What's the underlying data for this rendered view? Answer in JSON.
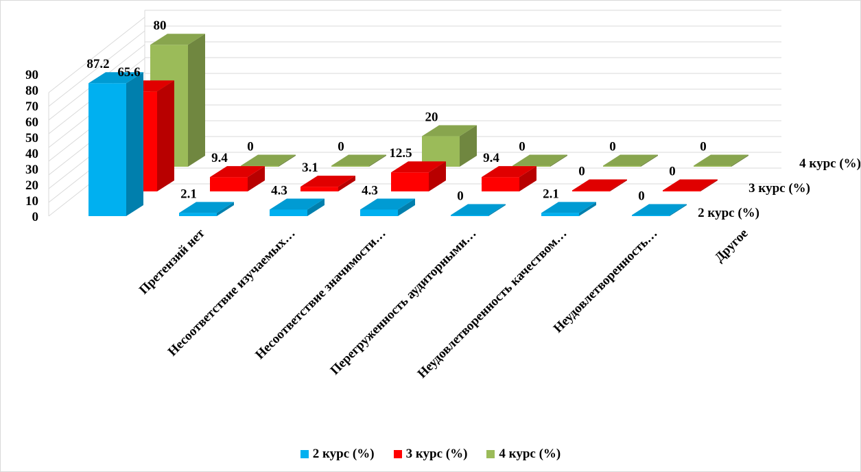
{
  "chart_data": {
    "type": "bar",
    "subtype": "3d-clustered",
    "categories": [
      "Претензий нет",
      "Несоответствие изучаемых…",
      "Несоответствие значимости…",
      "Перегруженность аудиторными…",
      "Неудовлетворенность качеством…",
      "Неудовлетворенность…",
      "Другое"
    ],
    "series": [
      {
        "name": "2 курс (%)",
        "color": "#00b0f0",
        "values": [
          87.2,
          2.1,
          4.3,
          4.3,
          0,
          2.1,
          0
        ]
      },
      {
        "name": "3 курс (%)",
        "color": "#ff0000",
        "values": [
          65.6,
          9.4,
          3.1,
          12.5,
          9.4,
          0,
          0
        ]
      },
      {
        "name": "4 курс (%)",
        "color": "#9bbb59",
        "values": [
          80,
          0,
          0,
          20,
          0,
          0,
          0
        ]
      }
    ],
    "yticks": [
      "0",
      "10",
      "20",
      "30",
      "40",
      "50",
      "60",
      "70",
      "80",
      "90"
    ],
    "ylim": [
      0,
      90
    ],
    "grid": true,
    "legend_position": "bottom"
  }
}
